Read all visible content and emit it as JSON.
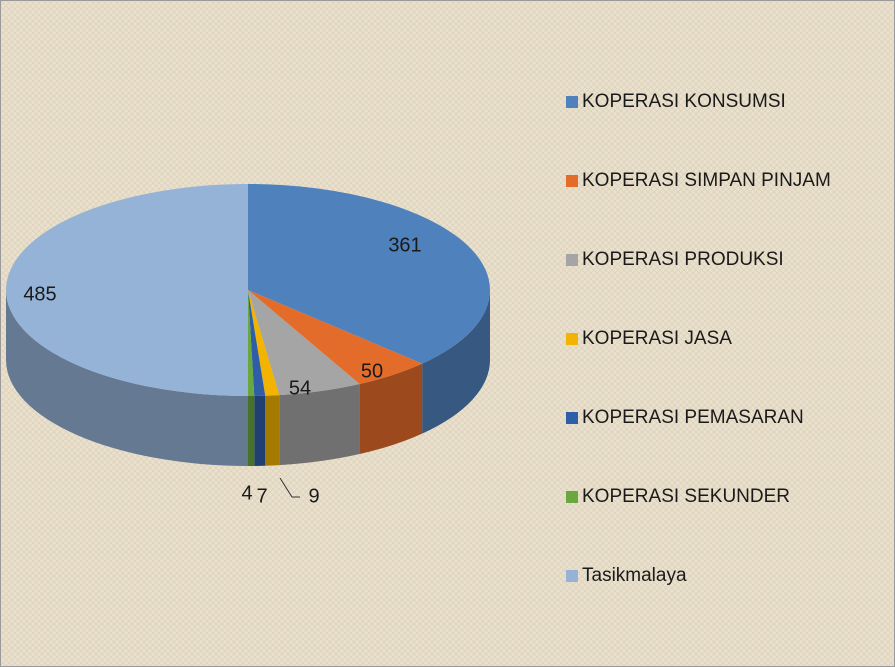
{
  "chart_data": {
    "type": "pie",
    "categories": [
      "KOPERASI KONSUMSI",
      "KOPERASI SIMPAN PINJAM",
      "KOPERASI PRODUKSI",
      "KOPERASI JASA",
      "KOPERASI PEMASARAN",
      "KOPERASI SEKUNDER",
      "Tasikmalaya"
    ],
    "values": [
      361,
      50,
      54,
      9,
      7,
      4,
      485
    ],
    "colors": [
      "#4f81bd",
      "#e46c2a",
      "#a5a5a5",
      "#f2b400",
      "#2f5ea8",
      "#6aa83f",
      "#95b3d7"
    ],
    "legend": "right"
  }
}
